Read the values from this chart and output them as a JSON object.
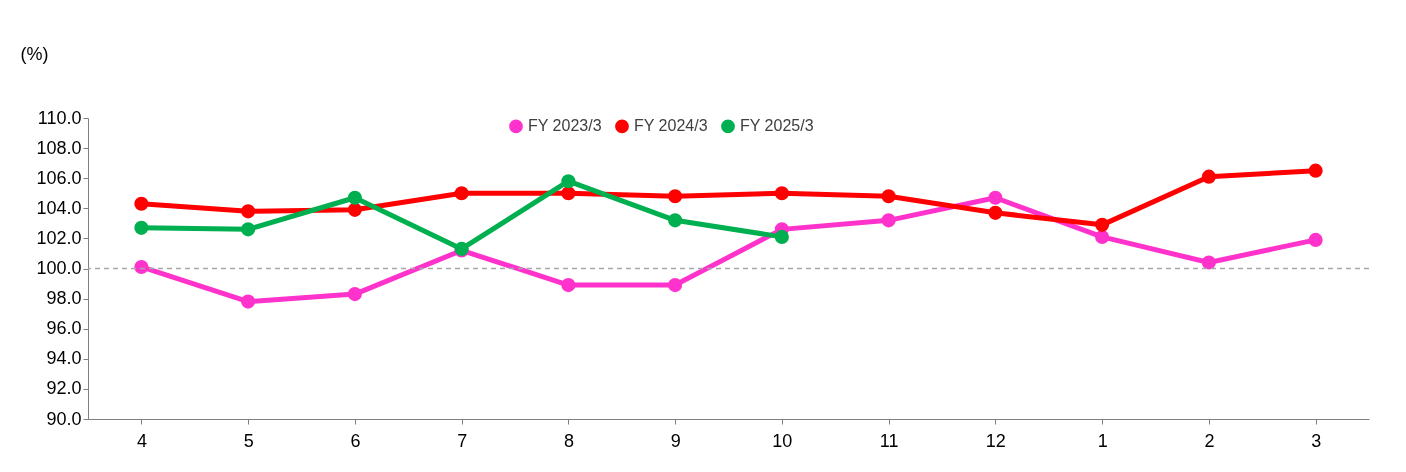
{
  "chart_data": {
    "type": "line",
    "ylabel": "(%)",
    "categories": [
      "4",
      "5",
      "6",
      "7",
      "8",
      "9",
      "10",
      "11",
      "12",
      "1",
      "2",
      "3"
    ],
    "ylim": [
      90,
      110
    ],
    "yticks": [
      {
        "value": 90,
        "label": "90.0"
      },
      {
        "value": 92,
        "label": "92.0"
      },
      {
        "value": 94,
        "label": "94.0"
      },
      {
        "value": 96,
        "label": "96.0"
      },
      {
        "value": 98,
        "label": "98.0"
      },
      {
        "value": 100,
        "label": "100.0"
      },
      {
        "value": 102,
        "label": "102.0"
      },
      {
        "value": 104,
        "label": "104.0"
      },
      {
        "value": 106,
        "label": "106.0"
      },
      {
        "value": 108,
        "label": "108.0"
      },
      {
        "value": 110,
        "label": "110.0"
      }
    ],
    "legend": "top",
    "marker": "circle",
    "series": [
      {
        "name": "FY 2023/3",
        "color": "#ff33cc",
        "values": [
          100.1,
          97.8,
          98.3,
          101.2,
          98.9,
          98.9,
          102.6,
          103.2,
          104.7,
          102.1,
          100.4,
          101.9
        ]
      },
      {
        "name": "FY 2024/3",
        "color": "#ff0000",
        "values": [
          104.3,
          103.8,
          103.9,
          105.0,
          105.0,
          104.8,
          105.0,
          104.8,
          103.7,
          102.9,
          106.1,
          106.5
        ]
      },
      {
        "name": "FY 2025/3",
        "color": "#00b050",
        "values": [
          102.7,
          102.6,
          104.7,
          101.3,
          105.8,
          103.2,
          102.1,
          null,
          null,
          null,
          null,
          null
        ]
      }
    ],
    "ref_lines": [
      {
        "axis": "y",
        "value": 100,
        "color": "#a6a6a6",
        "line_style": "dashed"
      }
    ]
  }
}
